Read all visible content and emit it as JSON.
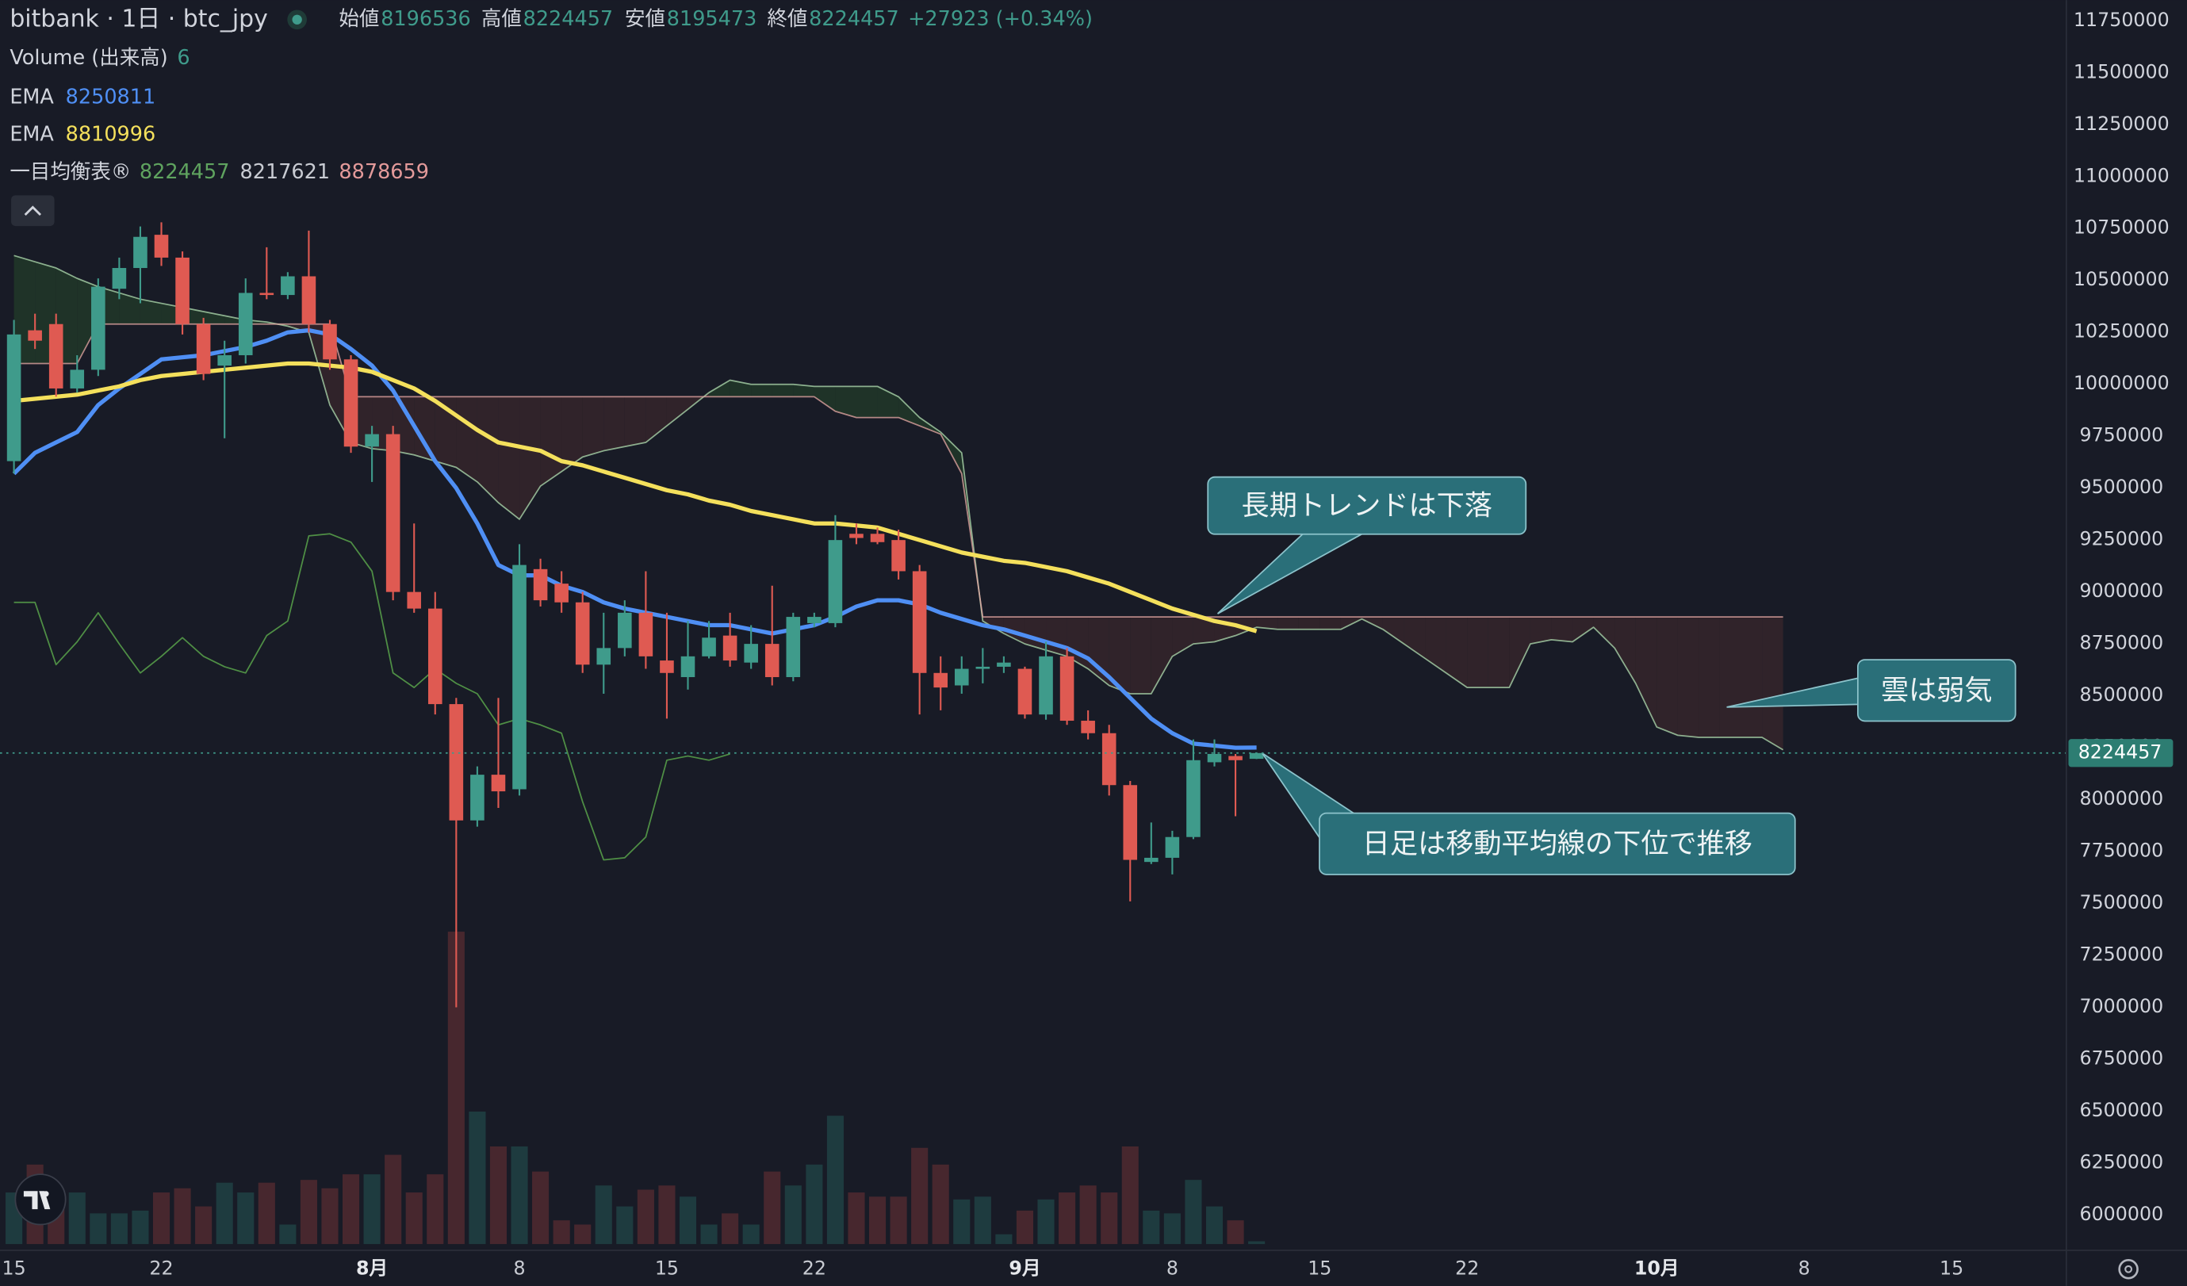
{
  "chart_data": {
    "type": "candlestick",
    "title": "bitbank · 1日 · btc_jpy",
    "categories": [
      "15",
      null,
      null,
      null,
      null,
      null,
      null,
      "22",
      null,
      null,
      null,
      null,
      null,
      null,
      null,
      null,
      null,
      "8月",
      null,
      null,
      null,
      null,
      null,
      null,
      "8",
      null,
      null,
      null,
      null,
      null,
      null,
      "15",
      null,
      null,
      null,
      null,
      null,
      null,
      "22",
      null,
      null,
      null,
      null,
      null,
      null,
      null,
      null,
      null,
      "9月",
      null,
      null,
      null,
      null,
      null,
      null,
      "8",
      null,
      null,
      null,
      null,
      null,
      null,
      "15",
      null,
      null,
      null,
      null,
      null,
      null,
      "22",
      null,
      null,
      null,
      null,
      null,
      null,
      null,
      null,
      "10月",
      null,
      null,
      null,
      null,
      null,
      null,
      "8",
      null,
      null,
      null,
      null,
      null,
      null,
      "15"
    ],
    "open": [
      9630000,
      10260000,
      10290000,
      9980000,
      10070000,
      10460000,
      10560000,
      10720000,
      10610000,
      10290000,
      10090000,
      10140000,
      10440000,
      10430000,
      10520000,
      10290000,
      10120000,
      9700000,
      9760000,
      9000000,
      8920000,
      8460000,
      7900000,
      8120000,
      8050000,
      9110000,
      9040000,
      8950000,
      8650000,
      8730000,
      8900000,
      8670000,
      8590000,
      8690000,
      8790000,
      8660000,
      8750000,
      8590000,
      8850000,
      8850000,
      9280000,
      9280000,
      9250000,
      9100000,
      8610000,
      8550000,
      8630000,
      8640000,
      8630000,
      8410000,
      8690000,
      8380000,
      8320000,
      8070000,
      7700000,
      7720000,
      7820000,
      8180000,
      8210000,
      8196536,
      null,
      null,
      null,
      null,
      null,
      null,
      null,
      null,
      null,
      null,
      null,
      null,
      null,
      null,
      null,
      null,
      null,
      null,
      null,
      null,
      null,
      null,
      null,
      null,
      null,
      null,
      null,
      null,
      null,
      null,
      null,
      null,
      null
    ],
    "high": [
      10310000,
      10340000,
      10340000,
      10140000,
      10510000,
      10610000,
      10760000,
      10780000,
      10640000,
      10320000,
      10210000,
      10510000,
      10660000,
      10540000,
      10740000,
      10310000,
      10140000,
      9800000,
      9800000,
      9330000,
      9000000,
      8490000,
      8160000,
      8490000,
      9230000,
      9160000,
      9100000,
      9000000,
      8900000,
      8960000,
      9100000,
      8900000,
      8860000,
      8860000,
      8900000,
      8840000,
      9030000,
      8900000,
      8900000,
      9370000,
      9330000,
      9310000,
      9300000,
      9130000,
      8690000,
      8690000,
      8730000,
      8690000,
      8640000,
      8760000,
      8730000,
      8430000,
      8360000,
      8090000,
      7890000,
      7850000,
      8290000,
      8290000,
      8220000,
      8224457,
      null,
      null,
      null,
      null,
      null,
      null,
      null,
      null,
      null,
      null,
      null,
      null,
      null,
      null,
      null,
      null,
      null,
      null,
      null,
      null,
      null,
      null,
      null,
      null,
      null,
      null,
      null,
      null,
      null,
      null,
      null,
      null,
      null
    ],
    "low": [
      9570000,
      10170000,
      9940000,
      9960000,
      10040000,
      10410000,
      10390000,
      10570000,
      10240000,
      10020000,
      9740000,
      10100000,
      10410000,
      10410000,
      10250000,
      10070000,
      9670000,
      9530000,
      8960000,
      8900000,
      8410000,
      7000000,
      7870000,
      7960000,
      8020000,
      8930000,
      8900000,
      8610000,
      8510000,
      8690000,
      8630000,
      8390000,
      8530000,
      8680000,
      8640000,
      8630000,
      8550000,
      8570000,
      8830000,
      8830000,
      9230000,
      9230000,
      9060000,
      8410000,
      8430000,
      8510000,
      8560000,
      8610000,
      8390000,
      8385000,
      8360000,
      8290000,
      8020000,
      7510000,
      7690000,
      7640000,
      7810000,
      8160000,
      7920000,
      8195473,
      null,
      null,
      null,
      null,
      null,
      null,
      null,
      null,
      null,
      null,
      null,
      null,
      null,
      null,
      null,
      null,
      null,
      null,
      null,
      null,
      null,
      null,
      null,
      null,
      null,
      null,
      null,
      null,
      null,
      null,
      null,
      null,
      null
    ],
    "close": [
      10240000,
      10210000,
      9980000,
      10070000,
      10470000,
      10560000,
      10710000,
      10610000,
      10290000,
      10050000,
      10140000,
      10440000,
      10430000,
      10520000,
      10290000,
      10120000,
      9700000,
      9760000,
      9000000,
      8920000,
      8460000,
      7900000,
      8120000,
      8040000,
      9130000,
      8960000,
      8950000,
      8650000,
      8730000,
      8900000,
      8690000,
      8610000,
      8690000,
      8780000,
      8670000,
      8750000,
      8590000,
      8880000,
      8880000,
      9250000,
      9260000,
      9240000,
      9100000,
      8610000,
      8540000,
      8630000,
      8640000,
      8660000,
      8410000,
      8690000,
      8380000,
      8320000,
      8070000,
      7710000,
      7720000,
      7820000,
      8190000,
      8220000,
      8190000,
      8224457,
      null,
      null,
      null,
      null,
      null,
      null,
      null,
      null,
      null,
      null,
      null,
      null,
      null,
      null,
      null,
      null,
      null,
      null,
      null,
      null,
      null,
      null,
      null,
      null,
      null,
      null,
      null,
      null,
      null,
      null,
      null,
      null,
      null
    ],
    "volume": [
      111,
      171,
      111,
      111,
      66,
      66,
      72,
      111,
      120,
      81,
      132,
      111,
      132,
      42,
      138,
      120,
      150,
      150,
      192,
      111,
      150,
      672,
      285,
      210,
      210,
      156,
      51,
      42,
      126,
      81,
      117,
      126,
      102,
      42,
      66,
      42,
      156,
      126,
      171,
      276,
      111,
      102,
      102,
      207,
      171,
      96,
      102,
      21,
      72,
      96,
      111,
      126,
      111,
      210,
      72,
      66,
      138,
      81,
      51,
      6,
      null,
      null,
      null,
      null,
      null,
      null,
      null,
      null,
      null,
      null,
      null,
      null,
      null,
      null,
      null,
      null,
      null,
      null,
      null,
      null,
      null,
      null,
      null,
      null,
      null,
      null,
      null,
      null,
      null,
      null,
      null,
      null,
      null
    ],
    "up_color": "#3f9b8b",
    "down_color": "#df5a52",
    "volume_up_color": "#1e3b3f",
    "volume_down_color": "#47272e",
    "ylim": [
      5860000,
      11850000
    ],
    "yticks": [
      6000000,
      6250000,
      6500000,
      6750000,
      7000000,
      7250000,
      7500000,
      7750000,
      8000000,
      8250000,
      8500000,
      8750000,
      9000000,
      9250000,
      9500000,
      9750000,
      10000000,
      10250000,
      10500000,
      10750000,
      11000000,
      11250000,
      11500000,
      11750000
    ],
    "grid": false,
    "legend": {
      "ohlc_labels": [
        "始値",
        "高値",
        "安値",
        "終値"
      ],
      "change": "+27923 (+0.34%)",
      "volume_label": "Volume (出来高)"
    },
    "series": [
      {
        "name": "EMA",
        "type": "line",
        "color": "#4f8ff4",
        "values": [
          9570000,
          9670000,
          9720000,
          9770000,
          9900000,
          9980000,
          10050000,
          10120000,
          10130000,
          10140000,
          10160000,
          10180000,
          10210000,
          10250000,
          10260000,
          10240000,
          10170000,
          10090000,
          9970000,
          9800000,
          9630000,
          9500000,
          9330000,
          9130000,
          9080000,
          9080000,
          9030000,
          9000000,
          8950000,
          8920000,
          8900000,
          8880000,
          8860000,
          8840000,
          8840000,
          8820000,
          8800000,
          8820000,
          8840000,
          8880000,
          8930000,
          8960000,
          8960000,
          8940000,
          8900000,
          8870000,
          8840000,
          8820000,
          8790000,
          8760000,
          8730000,
          8680000,
          8590000,
          8490000,
          8390000,
          8320000,
          8270000,
          8260000,
          8250000,
          8250811,
          null,
          null,
          null,
          null,
          null,
          null,
          null,
          null,
          null,
          null,
          null,
          null,
          null,
          null,
          null,
          null,
          null,
          null,
          null,
          null,
          null,
          null,
          null,
          null,
          null,
          null,
          null,
          null,
          null,
          null,
          null,
          null,
          null
        ]
      },
      {
        "name": "EMA",
        "type": "line",
        "color": "#f4e05c",
        "values": [
          9920000,
          9930000,
          9940000,
          9950000,
          9970000,
          9990000,
          10020000,
          10040000,
          10050000,
          10060000,
          10070000,
          10080000,
          10090000,
          10100000,
          10100000,
          10090000,
          10080000,
          10060000,
          10020000,
          9980000,
          9920000,
          9850000,
          9780000,
          9720000,
          9700000,
          9680000,
          9630000,
          9610000,
          9580000,
          9550000,
          9520000,
          9490000,
          9470000,
          9440000,
          9420000,
          9390000,
          9370000,
          9350000,
          9330000,
          9330000,
          9320000,
          9310000,
          9280000,
          9250000,
          9220000,
          9190000,
          9170000,
          9150000,
          9140000,
          9120000,
          9100000,
          9070000,
          9040000,
          9000000,
          8960000,
          8920000,
          8890000,
          8860000,
          8840000,
          8810996,
          null,
          null,
          null,
          null,
          null,
          null,
          null,
          null,
          null,
          null,
          null,
          null,
          null,
          null,
          null,
          null,
          null,
          null,
          null,
          null,
          null,
          null,
          null,
          null,
          null,
          null,
          null,
          null,
          null,
          null,
          null,
          null,
          null
        ]
      },
      {
        "name": "一目均衡表®",
        "type": "ichimoku",
        "legend_values": [
          8224457,
          8217621,
          8878659
        ],
        "legend_colors": [
          "#5fa35f",
          "#c8cbd2",
          "#e39a9a"
        ],
        "span_a_color": "#a9d3a9",
        "span_b_color": "#e8a9a6",
        "lagging_color": "#4f8f45",
        "cloud_up_color": "#1f3328",
        "cloud_down_color": "#30232a",
        "span_a": [
          10620000,
          10590000,
          10560000,
          10510000,
          10470000,
          10440000,
          10410000,
          10390000,
          10370000,
          10350000,
          10330000,
          10310000,
          10300000,
          10280000,
          10250000,
          9900000,
          9720000,
          9690000,
          9680000,
          9660000,
          9630000,
          9600000,
          9530000,
          9430000,
          9350000,
          9510000,
          9580000,
          9650000,
          9680000,
          9700000,
          9720000,
          9800000,
          9880000,
          9960000,
          10020000,
          10000000,
          10000000,
          10000000,
          9990000,
          9990000,
          9990000,
          9990000,
          9940000,
          9840000,
          9770000,
          9670000,
          8860000,
          8800000,
          8750000,
          8720000,
          8690000,
          8630000,
          8550000,
          8510000,
          8510000,
          8690000,
          8750000,
          8760000,
          8790000,
          8830000,
          8820000,
          8820000,
          8820000,
          8820000,
          8870000,
          8820000,
          8750000,
          8680000,
          8610000,
          8540000,
          8540000,
          8540000,
          8750000,
          8770000,
          8760000,
          8830000,
          8730000,
          8560000,
          8350000,
          8310000,
          8300000,
          8300000,
          8300000,
          8300000,
          8240000,
          null,
          null,
          null,
          null,
          null,
          null,
          null,
          null
        ],
        "span_b": [
          10100000,
          10100000,
          10100000,
          10100000,
          10290000,
          10290000,
          10290000,
          10290000,
          10290000,
          10290000,
          10290000,
          10290000,
          10290000,
          10290000,
          10290000,
          10290000,
          9940000,
          9940000,
          9940000,
          9940000,
          9940000,
          9940000,
          9940000,
          9940000,
          9940000,
          9940000,
          9940000,
          9940000,
          9940000,
          9940000,
          9940000,
          9940000,
          9940000,
          9940000,
          9940000,
          9940000,
          9940000,
          9940000,
          9940000,
          9870000,
          9840000,
          9840000,
          9840000,
          9800000,
          9760000,
          9570000,
          8880000,
          8880000,
          8880000,
          8880000,
          8880000,
          8880000,
          8880000,
          8880000,
          8880000,
          8880000,
          8880000,
          8880000,
          8880000,
          8880000,
          8880000,
          8880000,
          8880000,
          8880000,
          8880000,
          8880000,
          8880000,
          8880000,
          8880000,
          8880000,
          8880000,
          8880000,
          8880000,
          8880000,
          8880000,
          8880000,
          8880000,
          8880000,
          8880000,
          8880000,
          8880000,
          8880000,
          8880000,
          8880000,
          8880000,
          null,
          null,
          null,
          null,
          null,
          null,
          null,
          null
        ],
        "lagging": [
          8950000,
          8950000,
          8650000,
          8760000,
          8900000,
          8750000,
          8610000,
          8690000,
          8780000,
          8690000,
          8640000,
          8610000,
          8790000,
          8860000,
          9270000,
          9280000,
          9240000,
          9100000,
          8610000,
          8540000,
          8630000,
          8560000,
          8510000,
          8360000,
          8390000,
          8360000,
          8320000,
          7990000,
          7710000,
          7720000,
          7820000,
          8190000,
          8210000,
          8190000,
          8220000,
          null,
          null,
          null,
          null,
          null,
          null,
          null,
          null,
          null,
          null,
          null,
          null,
          null,
          null,
          null,
          null,
          null,
          null,
          null,
          null,
          null,
          null,
          null,
          null,
          null,
          null,
          null,
          null,
          null,
          null,
          null,
          null,
          null,
          null,
          null,
          null,
          null,
          null,
          null,
          null,
          null,
          null,
          null,
          null,
          null,
          null,
          null,
          null,
          null,
          null,
          null,
          null,
          null,
          null,
          null,
          null,
          null,
          null
        ]
      }
    ],
    "annotations": [
      {
        "text": "長期トレンドは下落"
      },
      {
        "text": "雲は弱気"
      },
      {
        "text": "日足は移動平均線の下位で推移"
      }
    ]
  }
}
